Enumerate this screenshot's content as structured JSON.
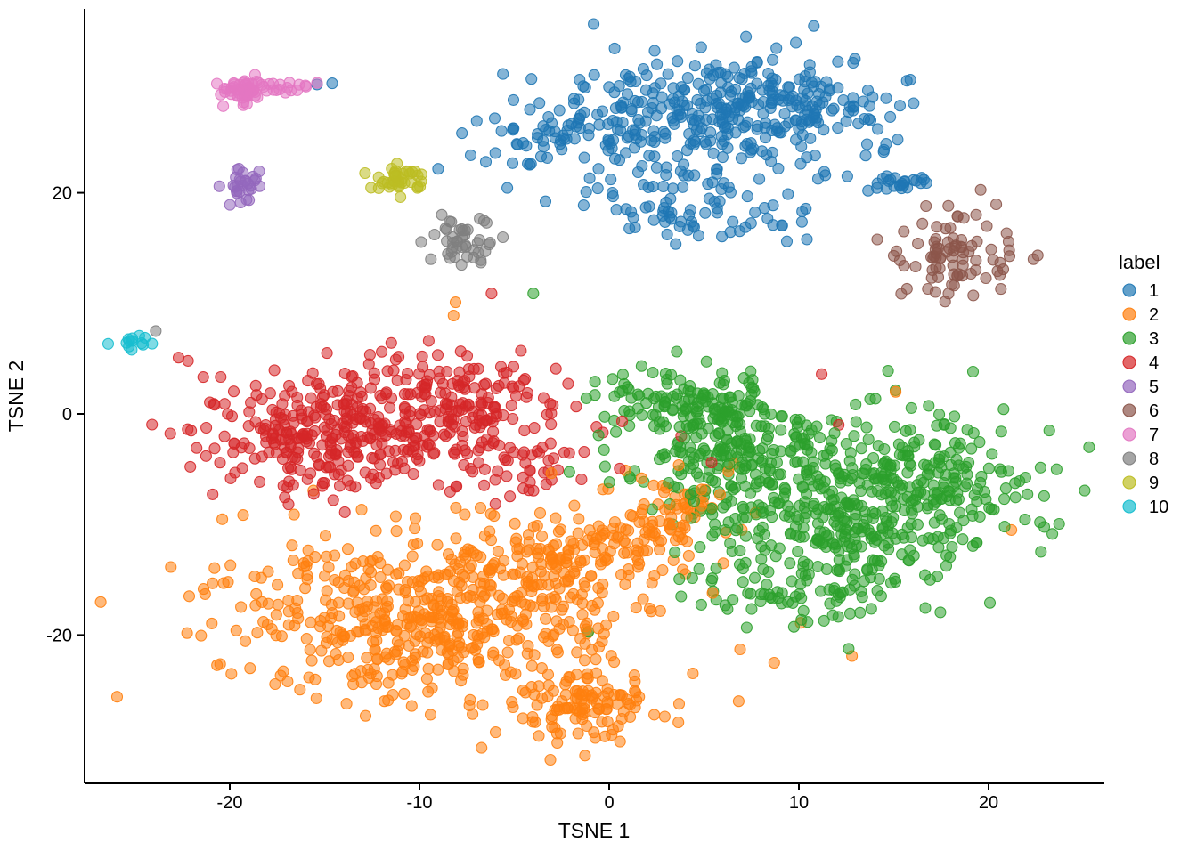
{
  "chart_data": {
    "type": "scatter",
    "title": "",
    "xlabel": "TSNE 1",
    "ylabel": "TSNE 2",
    "xlim": [
      -27.6,
      26.2
    ],
    "ylim": [
      -33.5,
      36.6
    ],
    "x_ticks": [
      -20,
      -10,
      0,
      10,
      20
    ],
    "y_ticks": [
      -20,
      0,
      20
    ],
    "grid": false,
    "legend": {
      "title": "label",
      "position": "right",
      "labels": [
        "1",
        "2",
        "3",
        "4",
        "5",
        "6",
        "7",
        "8",
        "9",
        "10"
      ]
    },
    "point": {
      "radius": 6,
      "fill_opacity": 0.55,
      "stroke_opacity": 0.9,
      "stroke_width": 1.1
    },
    "seed": 20240607,
    "series": [
      {
        "label": "1",
        "color": "#1f77b4",
        "blobs": [
          {
            "n": 300,
            "cx": 7.5,
            "cy": 27.5,
            "sx": 3.9,
            "sy": 2.7
          },
          {
            "n": 90,
            "cx": 1.5,
            "cy": 26.0,
            "sx": 2.6,
            "sy": 2.6
          },
          {
            "n": 45,
            "cx": -3.5,
            "cy": 25.5,
            "sx": 1.8,
            "sy": 2.3
          },
          {
            "n": 70,
            "cx": 4.5,
            "cy": 18.5,
            "sx": 2.9,
            "sy": 1.6
          },
          {
            "n": 24,
            "cx": 15.3,
            "cy": 20.9,
            "sx": 0.8,
            "sy": 0.35
          }
        ],
        "outliers": [
          [
            -15.4,
            29.8
          ],
          [
            -14.6,
            29.9
          ],
          [
            -7.3,
            23.4
          ],
          [
            -6.5,
            22.8
          ],
          [
            -6.0,
            23.6
          ],
          [
            -4.1,
            30.3
          ]
        ]
      },
      {
        "label": "2",
        "color": "#ff7f0e",
        "blobs": [
          {
            "n": 500,
            "cx": -10.0,
            "cy": -18.5,
            "sx": 5.0,
            "sy": 3.8
          },
          {
            "n": 150,
            "cx": -3.0,
            "cy": -14.0,
            "sx": 3.0,
            "sy": 3.0
          },
          {
            "n": 110,
            "cx": -1.5,
            "cy": -26.0,
            "sx": 2.2,
            "sy": 1.8
          },
          {
            "n": 90,
            "cx": 2.8,
            "cy": -9.5,
            "sx": 1.8,
            "sy": 2.3
          }
        ],
        "outliers": [
          [
            -21.3,
            -16.3
          ],
          [
            8.7,
            -22.5
          ],
          [
            10.1,
            -18.9
          ],
          [
            21.2,
            -10.5
          ],
          [
            15.1,
            2.0
          ],
          [
            -8.1,
            10.1
          ],
          [
            -8.2,
            8.9
          ],
          [
            12.8,
            -21.9
          ],
          [
            6.9,
            -21.3
          ]
        ]
      },
      {
        "label": "3",
        "color": "#2ca02c",
        "blobs": [
          {
            "n": 420,
            "cx": 12.0,
            "cy": -8.5,
            "sx": 4.2,
            "sy": 3.6
          },
          {
            "n": 150,
            "cx": 6.5,
            "cy": -3.0,
            "sx": 2.5,
            "sy": 2.5
          },
          {
            "n": 120,
            "cx": 3.8,
            "cy": 0.8,
            "sx": 2.2,
            "sy": 1.5
          },
          {
            "n": 100,
            "cx": 18.0,
            "cy": -5.0,
            "sx": 2.8,
            "sy": 3.2
          },
          {
            "n": 80,
            "cx": 10.0,
            "cy": -15.5,
            "sx": 3.5,
            "sy": 1.8
          }
        ],
        "outliers": [
          [
            -4.0,
            10.9
          ],
          [
            14.7,
            3.9
          ],
          [
            -1.1,
            -19.7
          ],
          [
            23.2,
            -1.5
          ]
        ]
      },
      {
        "label": "4",
        "color": "#d62728",
        "blobs": [
          {
            "n": 320,
            "cx": -12.5,
            "cy": -1.5,
            "sx": 4.2,
            "sy": 2.6
          },
          {
            "n": 110,
            "cx": -8.5,
            "cy": 2.5,
            "sx": 3.2,
            "sy": 1.8
          },
          {
            "n": 60,
            "cx": -17.5,
            "cy": -2.0,
            "sx": 2.0,
            "sy": 2.2
          },
          {
            "n": 45,
            "cx": -5.0,
            "cy": -4.0,
            "sx": 2.2,
            "sy": 2.2
          }
        ],
        "outliers": [
          [
            -22.7,
            5.1
          ],
          [
            -22.2,
            4.8
          ],
          [
            -6.2,
            10.9
          ],
          [
            11.2,
            3.6
          ],
          [
            12.1,
            -1.0
          ],
          [
            3.8,
            -2.0
          ],
          [
            5.4,
            -4.4
          ]
        ]
      },
      {
        "label": "5",
        "color": "#9467bd",
        "blobs": [
          {
            "n": 30,
            "cx": -19.2,
            "cy": 20.6,
            "sx": 0.5,
            "sy": 0.85
          }
        ],
        "outliers": []
      },
      {
        "label": "6",
        "color": "#8c564b",
        "blobs": [
          {
            "n": 85,
            "cx": 18.4,
            "cy": 14.2,
            "sx": 1.6,
            "sy": 2.0
          }
        ],
        "outliers": [
          [
            15.0,
            14.3
          ],
          [
            16.7,
            18.8
          ]
        ]
      },
      {
        "label": "7",
        "color": "#e377c2",
        "blobs": [
          {
            "n": 50,
            "cx": -19.3,
            "cy": 29.2,
            "sx": 0.55,
            "sy": 0.6
          },
          {
            "n": 20,
            "cx": -17.0,
            "cy": 29.7,
            "sx": 1.1,
            "sy": 0.28
          }
        ],
        "outliers": []
      },
      {
        "label": "8",
        "color": "#7f7f7f",
        "blobs": [
          {
            "n": 45,
            "cx": -7.6,
            "cy": 15.5,
            "sx": 0.8,
            "sy": 0.9
          }
        ],
        "outliers": [
          [
            -23.9,
            7.5
          ]
        ]
      },
      {
        "label": "9",
        "color": "#bcbd22",
        "blobs": [
          {
            "n": 40,
            "cx": -11.1,
            "cy": 21.2,
            "sx": 0.9,
            "sy": 0.6
          }
        ],
        "outliers": []
      },
      {
        "label": "10",
        "color": "#17becf",
        "blobs": [
          {
            "n": 13,
            "cx": -25.0,
            "cy": 6.4,
            "sx": 0.45,
            "sy": 0.3
          }
        ],
        "outliers": []
      }
    ]
  }
}
